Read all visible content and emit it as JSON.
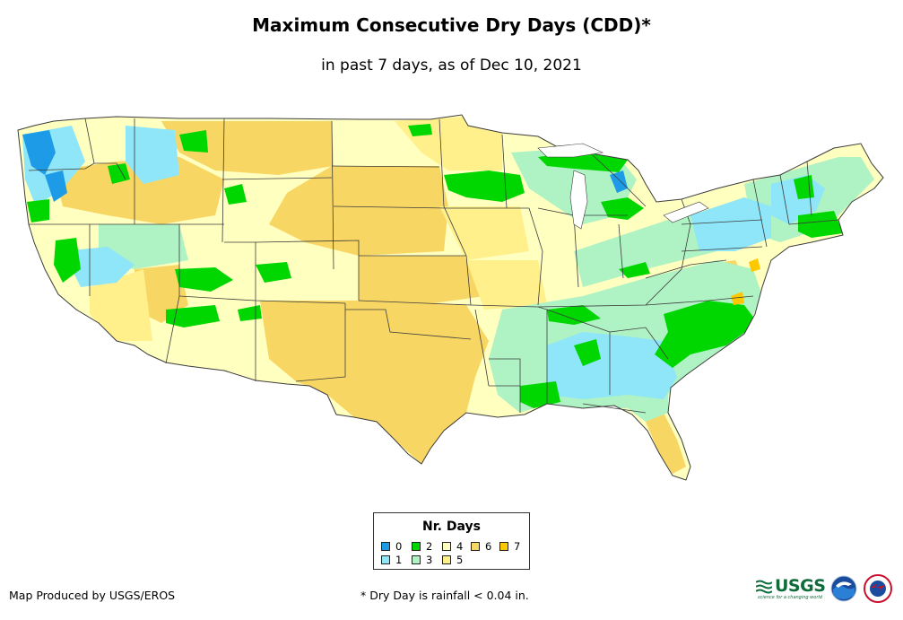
{
  "header": {
    "title": "Maximum Consecutive Dry Days (CDD)*",
    "subtitle": "in past 7 days, as of Dec 10, 2021"
  },
  "legend": {
    "title": "Nr. Days",
    "items": [
      {
        "label": "0",
        "color": "#1e9be6"
      },
      {
        "label": "1",
        "color": "#8ee6f8"
      },
      {
        "label": "2",
        "color": "#00d600"
      },
      {
        "label": "3",
        "color": "#aff2c4"
      },
      {
        "label": "4",
        "color": "#ffffc0"
      },
      {
        "label": "5",
        "color": "#fff08c"
      },
      {
        "label": "6",
        "color": "#f8d664"
      },
      {
        "label": "7",
        "color": "#fcc800"
      }
    ]
  },
  "footer": {
    "credit": "Map Produced by USGS/EROS",
    "footnote": "* Dry Day is rainfall < 0.04 in."
  },
  "logos": {
    "usgs_text": "USGS",
    "usgs_tagline": "science for a changing world",
    "noaa_text": "NOAA",
    "nws_text": "NWS"
  },
  "colors": {
    "border": "#3c3c3c",
    "state_line": "#3c3c3c"
  }
}
